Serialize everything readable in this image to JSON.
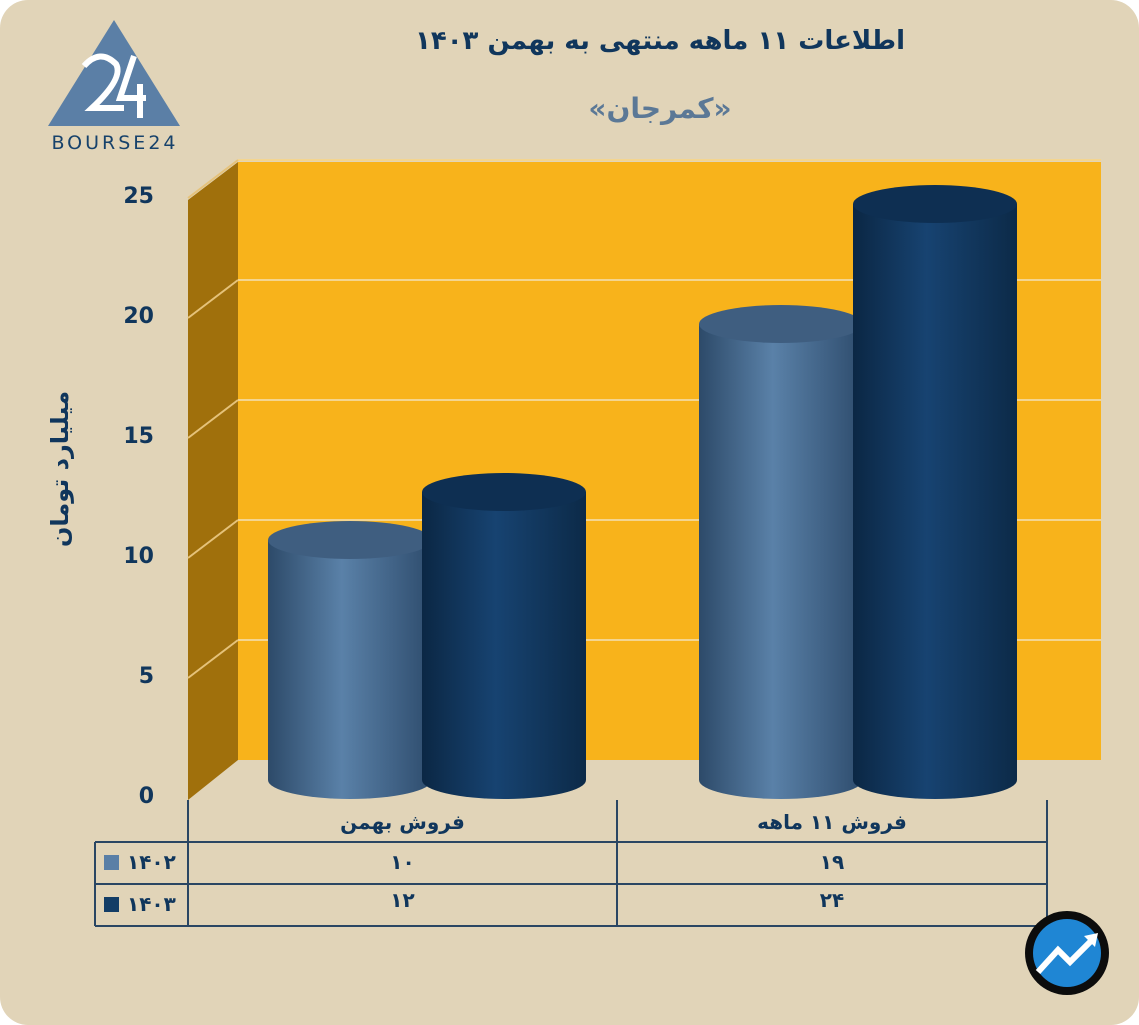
{
  "chart_data": {
    "type": "bar",
    "title": "اطلاعات ۱۱ ماهه منتهی به بهمن ۱۴۰۳",
    "subtitle": "«کمرجان»",
    "xlabel": "",
    "ylabel": "میلیارد تومان",
    "categories": [
      "فروش بهمن",
      "فروش ۱۱ ماهه"
    ],
    "series": [
      {
        "name": "۱۴۰۲",
        "values": [
          10,
          19
        ],
        "color": "#5a7fa6"
      },
      {
        "name": "۱۴۰۳",
        "values": [
          12,
          24
        ],
        "color": "#133d66"
      }
    ],
    "value_labels": [
      [
        "۱۰",
        "۱۹"
      ],
      [
        "۱۲",
        "۲۴"
      ]
    ],
    "ylim": [
      0,
      25
    ],
    "yticks": [
      0,
      5,
      10,
      15,
      20,
      25
    ],
    "ytick_labels": [
      "0",
      "5",
      "10",
      "15",
      "20",
      "25"
    ],
    "grid": true,
    "legend": "data-table-bottom"
  },
  "brand": {
    "logo_text": "BOURSE24",
    "logo_color": "#5b7fa6",
    "background": "#e1d4b8",
    "plot_color": "#f8b31b"
  }
}
